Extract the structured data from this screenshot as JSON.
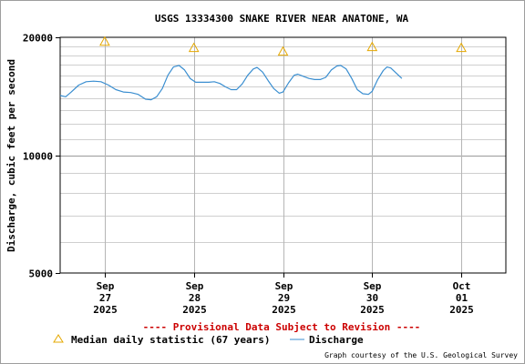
{
  "chart_data": {
    "type": "line",
    "title": "USGS 13334300 SNAKE RIVER NEAR ANATONE, WA",
    "ylabel": "Discharge, cubic feet per second",
    "yscale": "log",
    "ylim": [
      5000,
      20000
    ],
    "yticks": [
      5000,
      10000,
      20000
    ],
    "ytick_labels": [
      "5000",
      "10000",
      "20000"
    ],
    "x_start": "2025-09-26",
    "xlim": [
      "2025-09-26T12:00",
      "2025-10-01T12:00"
    ],
    "xticks": [
      {
        "t": "2025-09-27T00:00",
        "month": "Sep",
        "day": "27",
        "year": "2025"
      },
      {
        "t": "2025-09-28T00:00",
        "month": "Sep",
        "day": "28",
        "year": "2025"
      },
      {
        "t": "2025-09-29T00:00",
        "month": "Sep",
        "day": "29",
        "year": "2025"
      },
      {
        "t": "2025-09-30T00:00",
        "month": "Sep",
        "day": "30",
        "year": "2025"
      },
      {
        "t": "2025-10-01T00:00",
        "month": "Oct",
        "day": "01",
        "year": "2025"
      }
    ],
    "grid": true,
    "series": [
      {
        "name": "Discharge",
        "color": "#3a8ed0",
        "points": [
          [
            "2025-09-26T12:00",
            14200
          ],
          [
            "2025-09-26T13:30",
            14100
          ],
          [
            "2025-09-26T15:00",
            14500
          ],
          [
            "2025-09-26T17:00",
            15100
          ],
          [
            "2025-09-26T19:00",
            15400
          ],
          [
            "2025-09-26T21:00",
            15450
          ],
          [
            "2025-09-26T23:00",
            15400
          ],
          [
            "2025-09-27T01:00",
            15100
          ],
          [
            "2025-09-27T03:00",
            14700
          ],
          [
            "2025-09-27T05:00",
            14500
          ],
          [
            "2025-09-27T07:00",
            14450
          ],
          [
            "2025-09-27T09:00",
            14300
          ],
          [
            "2025-09-27T11:00",
            13900
          ],
          [
            "2025-09-27T12:30",
            13850
          ],
          [
            "2025-09-27T14:00",
            14100
          ],
          [
            "2025-09-27T15:30",
            14800
          ],
          [
            "2025-09-27T17:00",
            16000
          ],
          [
            "2025-09-27T18:30",
            16800
          ],
          [
            "2025-09-27T20:00",
            16950
          ],
          [
            "2025-09-27T21:30",
            16500
          ],
          [
            "2025-09-27T23:00",
            15700
          ],
          [
            "2025-09-28T00:30",
            15350
          ],
          [
            "2025-09-28T02:00",
            15350
          ],
          [
            "2025-09-28T04:00",
            15350
          ],
          [
            "2025-09-28T05:30",
            15400
          ],
          [
            "2025-09-28T07:00",
            15250
          ],
          [
            "2025-09-28T08:30",
            14950
          ],
          [
            "2025-09-28T10:00",
            14700
          ],
          [
            "2025-09-28T11:30",
            14700
          ],
          [
            "2025-09-28T13:00",
            15200
          ],
          [
            "2025-09-28T14:30",
            16000
          ],
          [
            "2025-09-28T16:00",
            16600
          ],
          [
            "2025-09-28T17:00",
            16750
          ],
          [
            "2025-09-28T18:30",
            16300
          ],
          [
            "2025-09-28T20:00",
            15500
          ],
          [
            "2025-09-28T21:30",
            14800
          ],
          [
            "2025-09-28T23:00",
            14400
          ],
          [
            "2025-09-29T00:00",
            14500
          ],
          [
            "2025-09-29T01:30",
            15300
          ],
          [
            "2025-09-29T03:00",
            16000
          ],
          [
            "2025-09-29T04:00",
            16100
          ],
          [
            "2025-09-29T05:30",
            15900
          ],
          [
            "2025-09-29T07:00",
            15700
          ],
          [
            "2025-09-29T08:30",
            15600
          ],
          [
            "2025-09-29T10:00",
            15600
          ],
          [
            "2025-09-29T11:30",
            15800
          ],
          [
            "2025-09-29T13:00",
            16500
          ],
          [
            "2025-09-29T14:30",
            16900
          ],
          [
            "2025-09-29T15:30",
            16950
          ],
          [
            "2025-09-29T17:00",
            16600
          ],
          [
            "2025-09-29T18:30",
            15700
          ],
          [
            "2025-09-29T20:00",
            14700
          ],
          [
            "2025-09-29T21:30",
            14350
          ],
          [
            "2025-09-29T23:00",
            14300
          ],
          [
            "2025-09-30T00:00",
            14550
          ],
          [
            "2025-09-30T01:30",
            15600
          ],
          [
            "2025-09-30T03:00",
            16450
          ],
          [
            "2025-09-30T04:00",
            16800
          ],
          [
            "2025-09-30T05:00",
            16700
          ],
          [
            "2025-09-30T06:30",
            16200
          ],
          [
            "2025-09-30T08:00",
            15700
          ]
        ]
      }
    ],
    "median_series": {
      "name": "Median daily statistic (67 years)",
      "color": "#e5a800",
      "marker": "triangle",
      "points": [
        [
          "2025-09-27T00:00",
          19500
        ],
        [
          "2025-09-28T00:00",
          18800
        ],
        [
          "2025-09-29T00:00",
          18400
        ],
        [
          "2025-09-30T00:00",
          18900
        ],
        [
          "2025-10-01T00:00",
          18800
        ]
      ]
    },
    "annotation": "---- Provisional Data Subject to Revision ----",
    "legend": {
      "placement": "bottom-left",
      "items": [
        "Median daily statistic (67 years)",
        "Discharge"
      ]
    },
    "credit": "Graph courtesy of the U.S. Geological Survey"
  }
}
